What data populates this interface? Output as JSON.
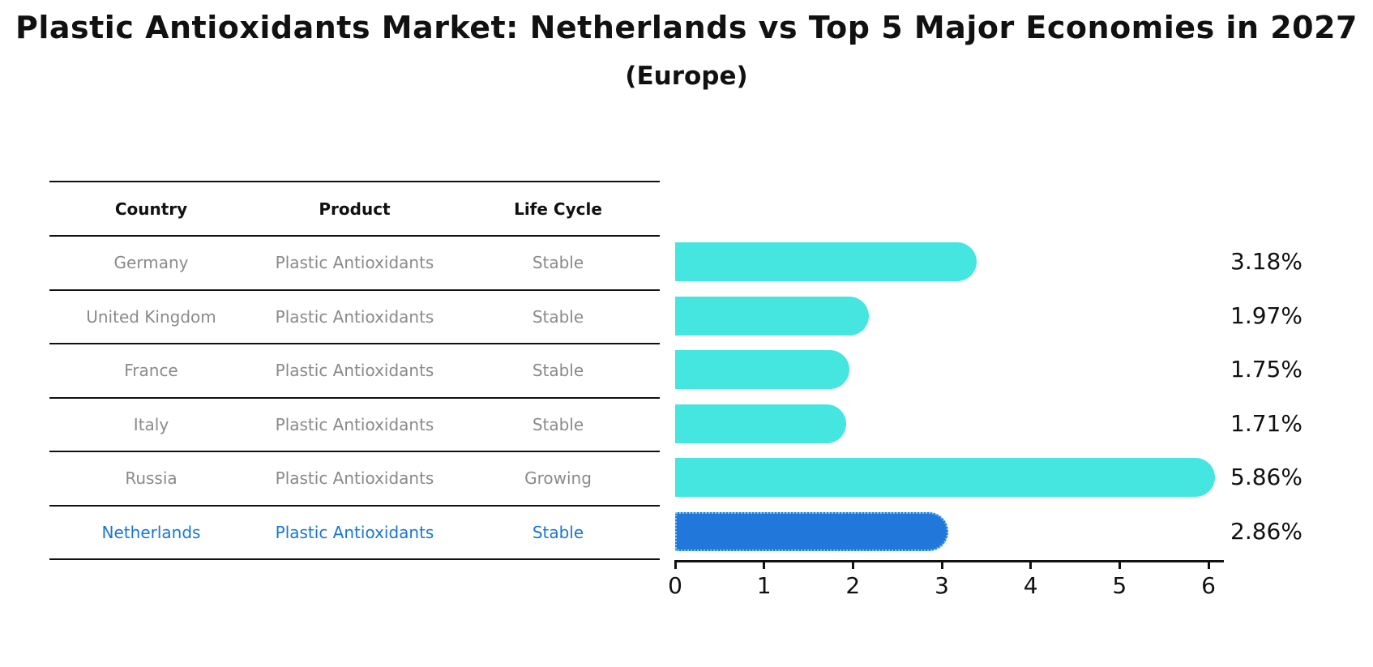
{
  "title": "Plastic Antioxidants Market: Netherlands vs Top 5 Major Economies in 2027",
  "subtitle": "(Europe)",
  "table": {
    "columns": [
      "Country",
      "Product",
      "Life Cycle"
    ],
    "rows": [
      {
        "cells": [
          "Germany",
          "Plastic Antioxidants",
          "Stable"
        ],
        "highlight": false
      },
      {
        "cells": [
          "United Kingdom",
          "Plastic Antioxidants",
          "Stable"
        ],
        "highlight": false
      },
      {
        "cells": [
          "France",
          "Plastic Antioxidants",
          "Stable"
        ],
        "highlight": false
      },
      {
        "cells": [
          "Italy",
          "Plastic Antioxidants",
          "Stable"
        ],
        "highlight": false
      },
      {
        "cells": [
          "Russia",
          "Plastic Antioxidants",
          "Growing"
        ],
        "highlight": false
      },
      {
        "cells": [
          "Netherlands",
          "Plastic Antioxidants",
          "Stable"
        ],
        "highlight": true
      }
    ]
  },
  "chart_data": {
    "type": "bar",
    "orientation": "horizontal",
    "categories": [
      "Germany",
      "United Kingdom",
      "France",
      "Italy",
      "Russia",
      "Netherlands"
    ],
    "values": [
      3.18,
      1.97,
      1.75,
      1.71,
      5.86,
      2.86
    ],
    "value_labels": [
      "3.18%",
      "1.97%",
      "1.75%",
      "1.71%",
      "5.86%",
      "2.86%"
    ],
    "highlight_index": 5,
    "xlim": [
      0,
      6
    ],
    "xticks": [
      "0",
      "1",
      "2",
      "3",
      "4",
      "5",
      "6"
    ],
    "grid": false,
    "legend": false,
    "bar_color": "#45E6E0",
    "highlight_bar_color": "#2277DB",
    "highlight_border_color": "#79CCF3",
    "muted_text_color": "#8a8a8a",
    "highlight_text_color": "#1a76d2"
  }
}
